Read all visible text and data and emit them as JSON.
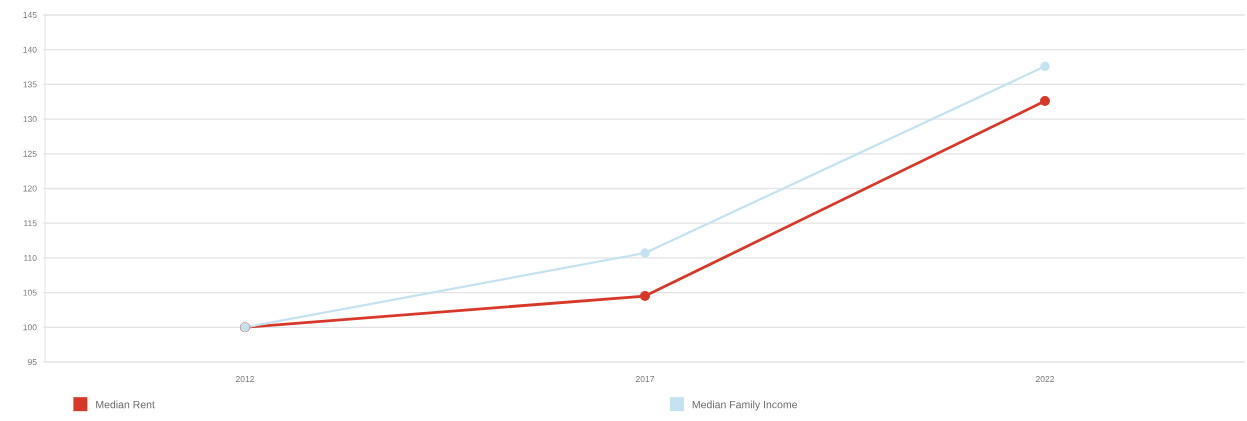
{
  "chart_data": {
    "type": "line",
    "categories": [
      "2012",
      "2017",
      "2022"
    ],
    "series": [
      {
        "name": "Median Rent",
        "color": "#d8382a",
        "values": [
          100,
          104.5,
          132.6
        ]
      },
      {
        "name": "Median Family Income",
        "color": "#c4e2f0",
        "values": [
          100,
          110.7,
          137.6
        ]
      }
    ],
    "ylim": [
      95,
      145
    ],
    "yticks": [
      95,
      100,
      105,
      110,
      115,
      120,
      125,
      130,
      135,
      140,
      145
    ],
    "grid": "y",
    "legend": "bottom",
    "marker": "circle",
    "line_style": "solid"
  }
}
